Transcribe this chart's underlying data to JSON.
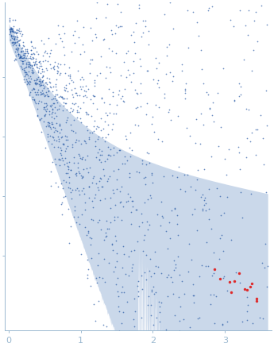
{
  "background_color": "#ffffff",
  "blue_color": "#1a4fa0",
  "red_color": "#e02020",
  "error_band_color": "#c5d4e8",
  "error_band_alpha": 0.9,
  "xlim": [
    -0.05,
    3.65
  ],
  "ylim": [
    -0.05,
    1.05
  ],
  "xticks": [
    0,
    1,
    2,
    3
  ],
  "tick_color": "#9ab8d0",
  "seed": 12345
}
